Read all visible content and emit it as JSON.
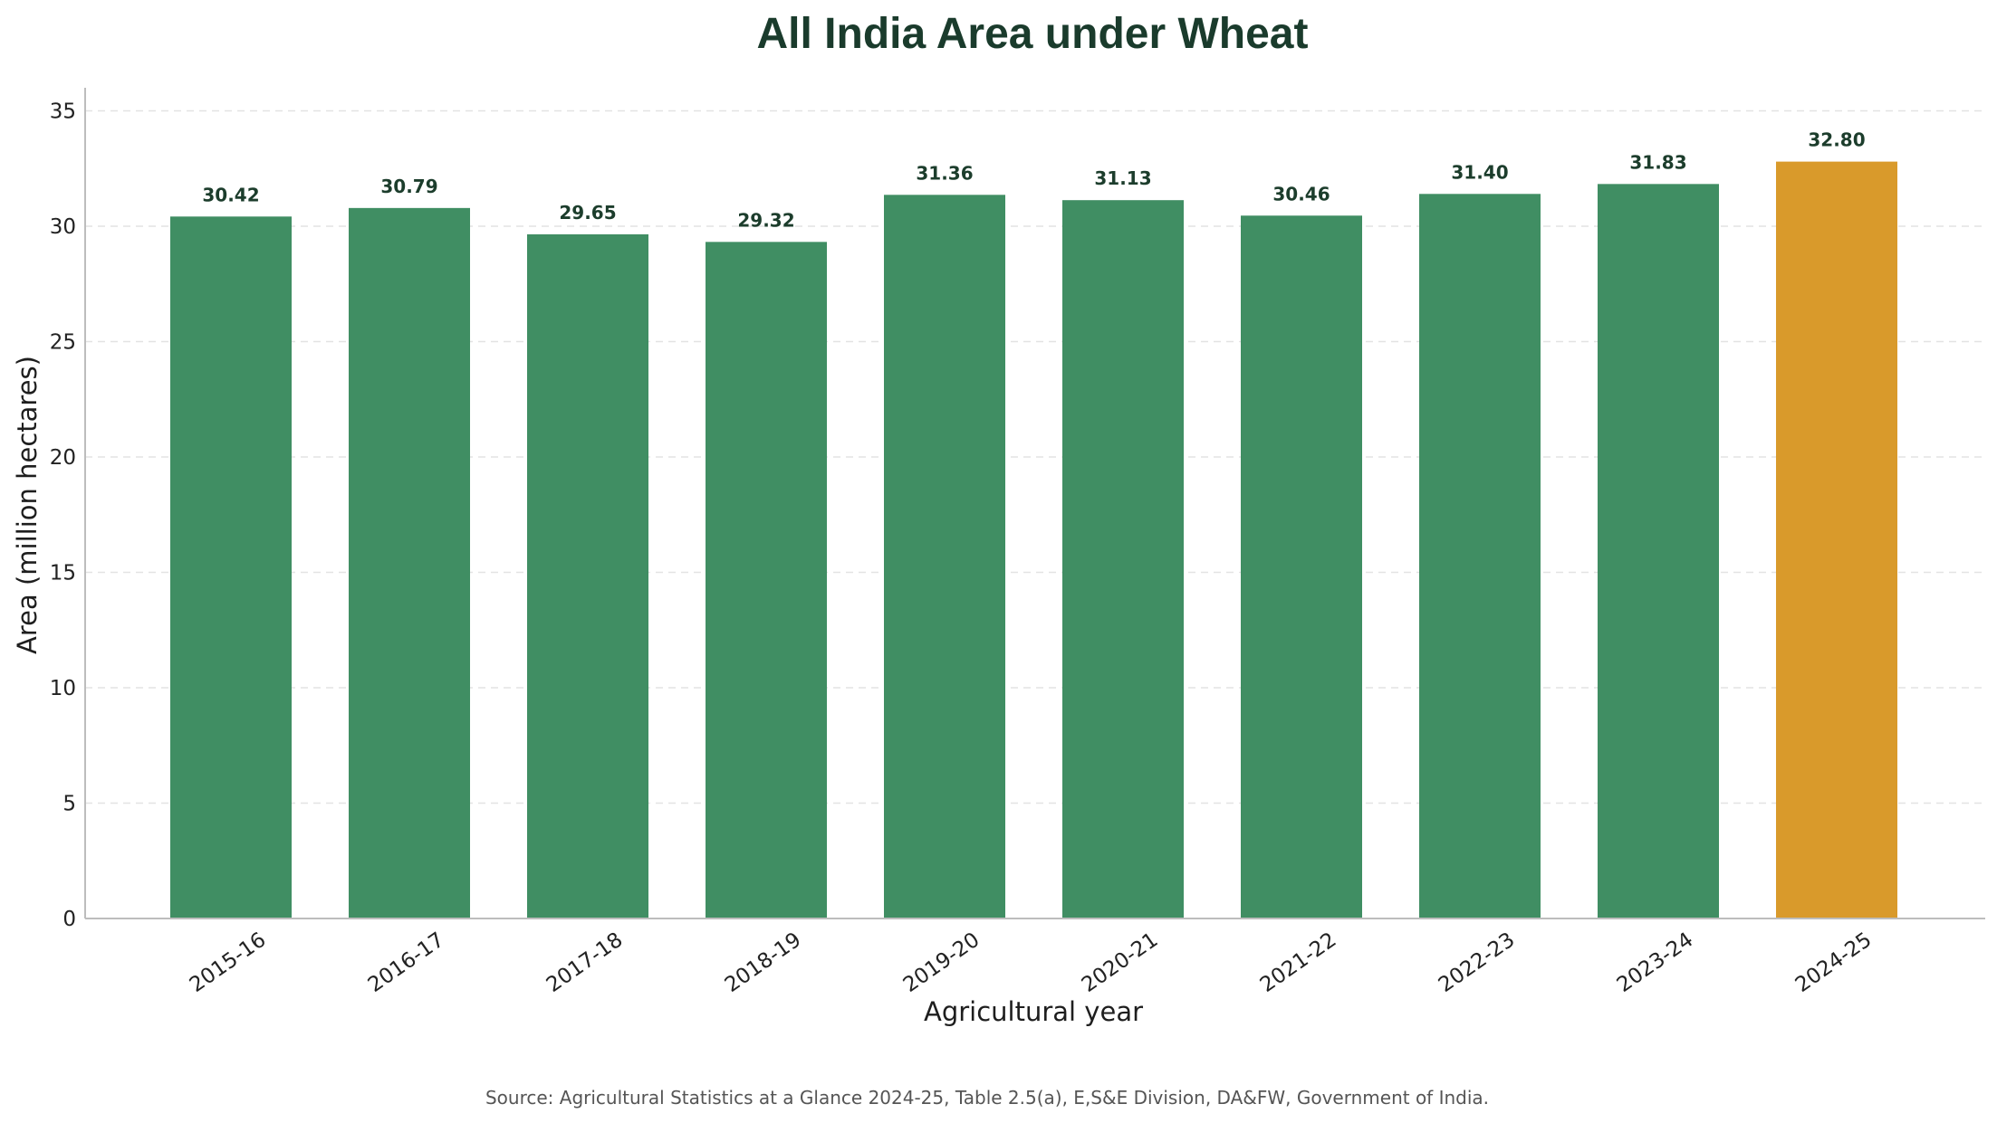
{
  "chart_data": {
    "type": "bar",
    "title": "All India Area under Wheat",
    "xlabel": "Agricultural year",
    "ylabel": "Area (million hectares)",
    "ylim": [
      0,
      36
    ],
    "yticks": [
      0,
      5,
      10,
      15,
      20,
      25,
      30,
      35
    ],
    "grid": "horizontal-dashed",
    "categories": [
      "2015-16",
      "2016-17",
      "2017-18",
      "2018-19",
      "2019-20",
      "2020-21",
      "2021-22",
      "2022-23",
      "2023-24",
      "2024-25"
    ],
    "values": [
      30.42,
      30.79,
      29.65,
      29.32,
      31.36,
      31.13,
      30.46,
      31.4,
      31.83,
      32.8
    ],
    "data_labels": [
      "30.42",
      "30.79",
      "29.65",
      "29.32",
      "31.36",
      "31.13",
      "30.46",
      "31.40",
      "31.83",
      "32.80"
    ],
    "bar_color": "#408e63",
    "highlight_color": "#d99a2b",
    "highlight_category": "2024-25",
    "source": "Source: Agricultural Statistics at a Glance 2024-25, Table 2.5(a), E,S&E Division, DA&FW, Government of India."
  }
}
